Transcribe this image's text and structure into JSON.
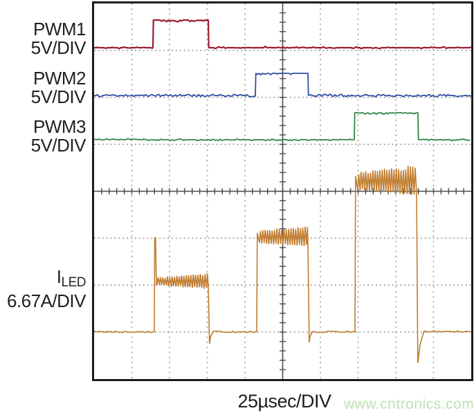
{
  "figure": {
    "watermark": "www.cntronics.com",
    "watermark_color": "#b9e4b1",
    "background_color": "#ffffff",
    "border_color": "#1b1b1b"
  },
  "chart_data": {
    "type": "line",
    "subtype": "oscilloscope",
    "title": "",
    "xlabel": "25µsec/DIV",
    "time_per_div_us": 25,
    "grid": {
      "x_divisions": 10,
      "y_divisions": 8,
      "dot_color": "#949494",
      "axis_color": "#4a4a4a",
      "ticks_per_div": 5
    },
    "series": [
      {
        "name": "PWM1",
        "scale_label": "5V/DIV",
        "color": "#9a1b2d",
        "kind": "pwm",
        "low_y_div": 0.943,
        "high_y_div": 0.354,
        "rise_x_div": 1.56,
        "fall_x_div": 3.028,
        "rise_time_us": 39.0,
        "fall_time_us": 75.7
      },
      {
        "name": "PWM2",
        "scale_label": "5V/DIV",
        "color": "#2d4da0",
        "kind": "pwm",
        "low_y_div": 1.959,
        "high_y_div": 1.488,
        "rise_x_div": 4.275,
        "fall_x_div": 5.67,
        "rise_time_us": 106.9,
        "fall_time_us": 141.8
      },
      {
        "name": "PWM3",
        "scale_label": "5V/DIV",
        "color": "#2f8743",
        "kind": "pwm",
        "low_y_div": 2.902,
        "high_y_div": 2.328,
        "rise_x_div": 6.899,
        "fall_x_div": 8.587,
        "rise_time_us": 172.5,
        "fall_time_us": 214.7
      },
      {
        "name": "ILED",
        "name_main": "I",
        "name_sub": "LED",
        "scale_label": "6.67A/DIV",
        "color": "#c07c2e",
        "kind": "current",
        "baseline_y_div": 6.998,
        "pulses": [
          {
            "rise_x_div": 1.596,
            "fall_x_div": 3.046,
            "level_y_div": 5.923,
            "spike_y_div": 4.98,
            "undershoot_y_div": 7.249,
            "ripple_amp_start_div": 0.074,
            "ripple_amp_end_div": 0.162,
            "rise_time_us": 39.9,
            "fall_time_us": 76.2,
            "level_a_approx": 7.2
          },
          {
            "rise_x_div": 4.312,
            "fall_x_div": 5.688,
            "level_y_div": 4.98,
            "undershoot_y_div": 7.219,
            "ripple_amp_start_div": 0.133,
            "ripple_amp_end_div": 0.206,
            "rise_time_us": 107.8,
            "fall_time_us": 142.2,
            "level_a_approx": 13.5
          },
          {
            "rise_x_div": 6.917,
            "fall_x_div": 8.569,
            "level_y_div": 3.801,
            "undershoot_y_div": 7.661,
            "ripple_amp_start_div": 0.177,
            "ripple_amp_end_div": 0.324,
            "rise_time_us": 172.9,
            "fall_time_us": 214.2,
            "level_a_approx": 21.3
          }
        ]
      }
    ]
  }
}
